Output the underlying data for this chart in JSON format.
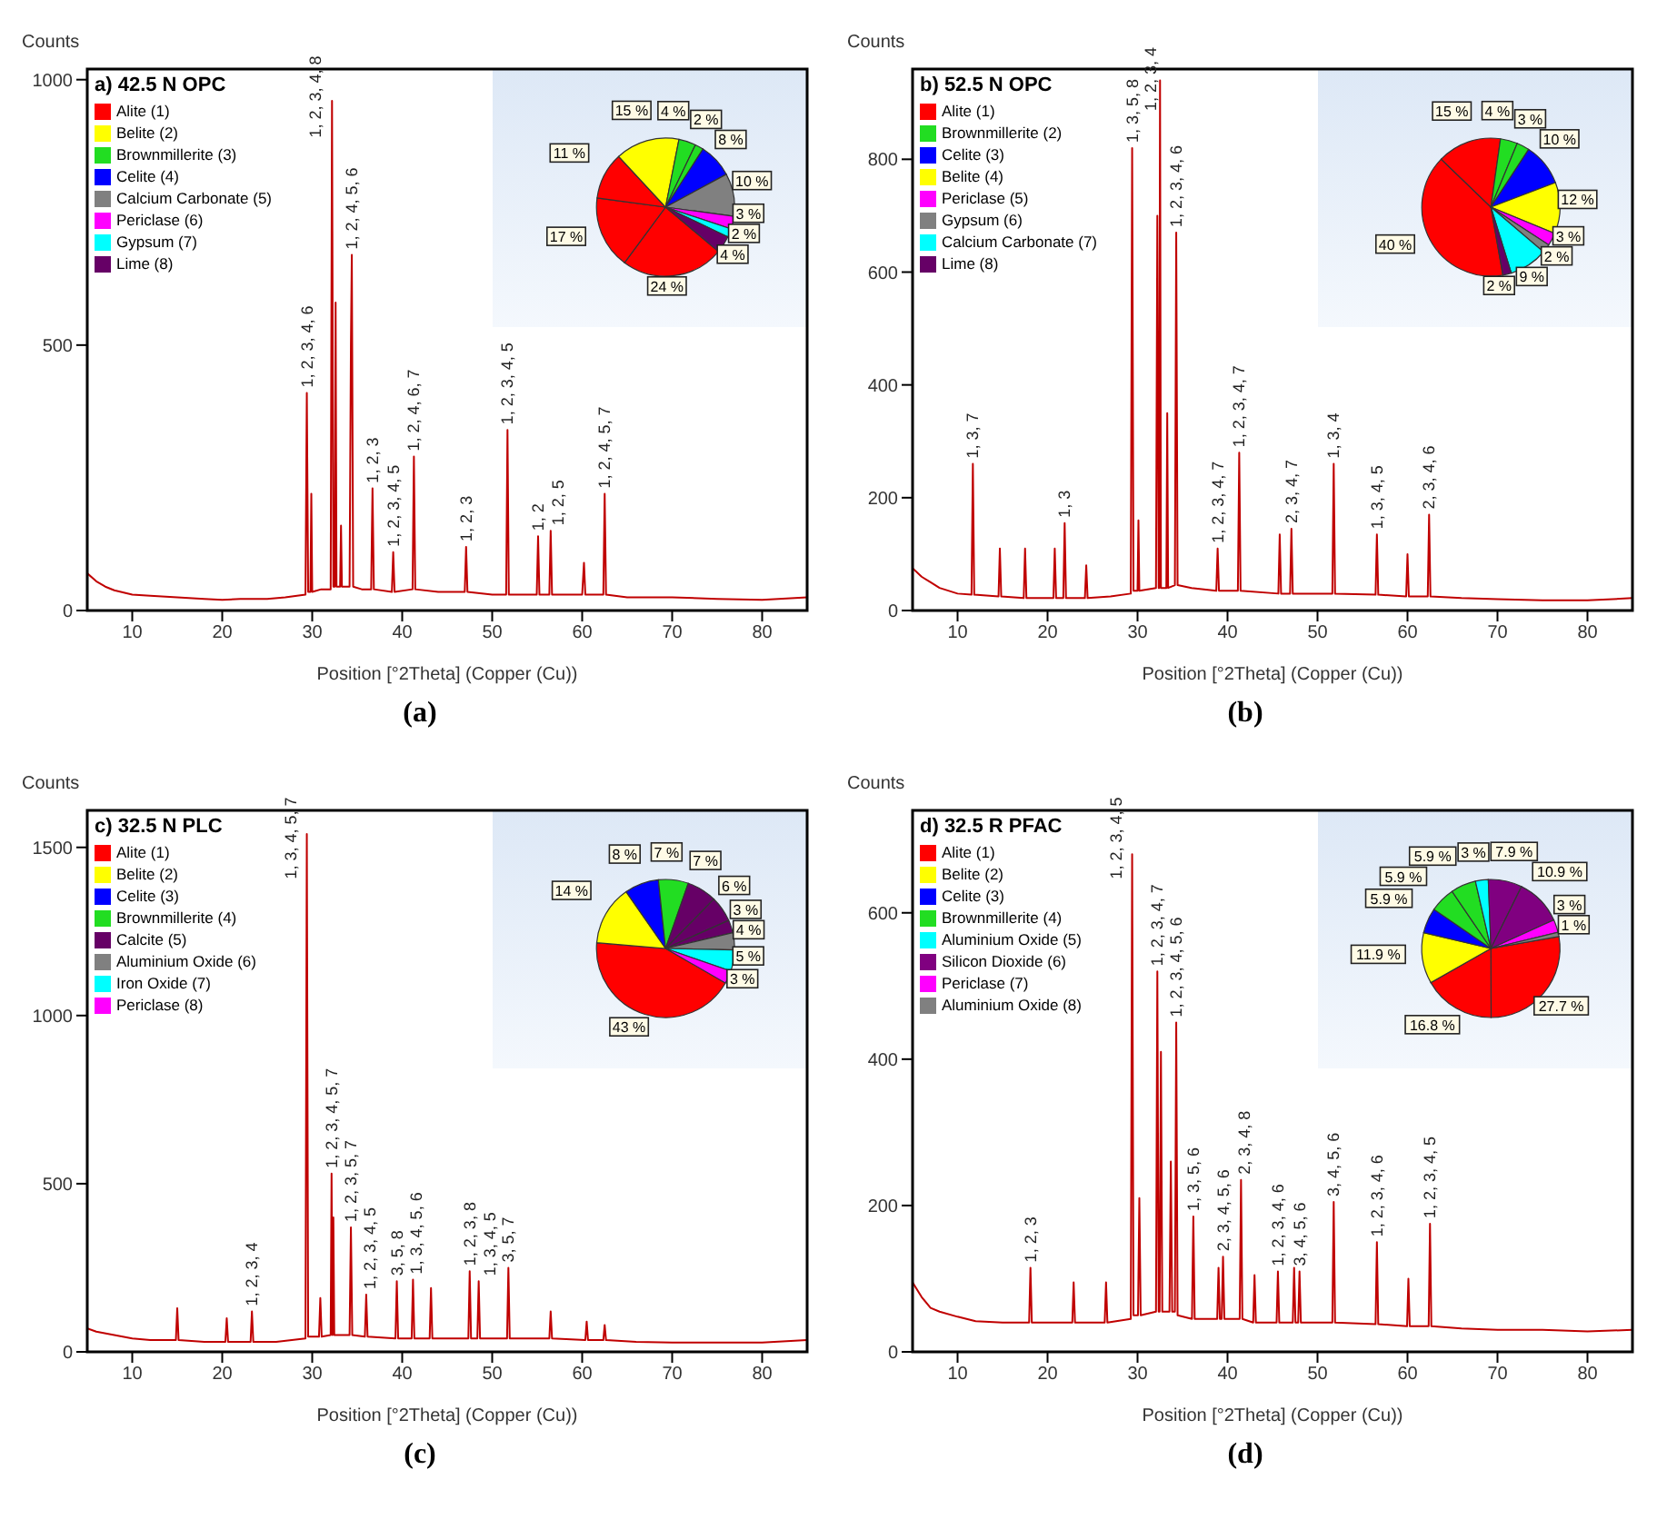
{
  "chart_data": [
    {
      "type": "line",
      "title": "a) 42.5 N OPC",
      "xlabel": "Position [°2Theta] (Copper (Cu))",
      "ylabel": "Counts",
      "color": "#c00000",
      "xlim": [
        5,
        85
      ],
      "ylim": [
        0,
        1020
      ],
      "xticks": [
        10,
        20,
        30,
        40,
        50,
        60,
        70,
        80
      ],
      "yticks": [
        0,
        500,
        1000
      ],
      "x": [
        5,
        6,
        7,
        8,
        10,
        12,
        15,
        18,
        20,
        22,
        25,
        27,
        29.25,
        29.4,
        29.55,
        29.8,
        29.9,
        30,
        31,
        32.05,
        32.2,
        32.35,
        32.5,
        32.6,
        32.7,
        33.1,
        33.2,
        33.3,
        34.15,
        34.3,
        34.4,
        34.55,
        35.5,
        36.55,
        36.7,
        36.85,
        38.85,
        39,
        39.15,
        41.15,
        41.3,
        41.45,
        44,
        46.95,
        47.1,
        47.25,
        50,
        51.55,
        51.7,
        51.85,
        54.95,
        55.1,
        55.25,
        56.35,
        56.5,
        56.65,
        60,
        60.2,
        60.35,
        62.35,
        62.5,
        62.65,
        65,
        70,
        75,
        80,
        85
      ],
      "values": [
        70,
        55,
        45,
        38,
        30,
        28,
        25,
        22,
        20,
        22,
        22,
        25,
        30,
        410,
        35,
        35,
        220,
        35,
        40,
        40,
        960,
        45,
        45,
        580,
        45,
        45,
        160,
        45,
        45,
        500,
        670,
        45,
        40,
        40,
        230,
        40,
        35,
        110,
        35,
        40,
        290,
        40,
        35,
        35,
        120,
        35,
        30,
        30,
        340,
        30,
        30,
        140,
        30,
        30,
        150,
        30,
        30,
        90,
        30,
        30,
        220,
        30,
        25,
        25,
        22,
        20,
        25
      ],
      "annotations": [
        {
          "text": "1, 2, 3, 4, 6",
          "x": 29.4,
          "y": 410
        },
        {
          "text": "1, 2, 3, 4, 8",
          "x": 32.2,
          "y": 960
        },
        {
          "text": "1, 2, 4, 5, 6",
          "x": 34.4,
          "y": 670
        },
        {
          "text": "1, 2, 3",
          "x": 36.7,
          "y": 230
        },
        {
          "text": "1, 2, 3, 4, 5",
          "x": 39,
          "y": 110
        },
        {
          "text": "1, 2, 4, 6, 7",
          "x": 41.3,
          "y": 290
        },
        {
          "text": "1, 2, 3",
          "x": 47.1,
          "y": 120
        },
        {
          "text": "1, 2, 3, 4, 5",
          "x": 51.7,
          "y": 340
        },
        {
          "text": "1, 2",
          "x": 55.1,
          "y": 140
        },
        {
          "text": "1, 2, 5",
          "x": 56.5,
          "y": 150
        },
        {
          "text": "1, 2, 4, 5, 7",
          "x": 62.5,
          "y": 220
        },
        "(a)"
      ]
    },
    {
      "type": "pie",
      "legend": "left",
      "categories": [
        "Alite (1)",
        null,
        null,
        "Belite (2)",
        "Brownmillerite (3)",
        null,
        "Celite (4)",
        "Calcium Carbonate (5)",
        "Periclase (6)",
        "Gypsum (7)",
        "Lime (8)"
      ],
      "values": [
        24,
        17,
        11,
        15,
        4,
        2,
        8,
        10,
        3,
        2,
        4
      ],
      "colors": [
        "#ff0000",
        "#ff0000",
        "#ff0000",
        "#ffff00",
        "#22dd22",
        "#22dd22",
        "#0000ff",
        "#808080",
        "#ff00ff",
        "#00ffff",
        "#660066"
      ],
      "value_labels": [
        "24 %",
        "17 %",
        "11 %",
        "15 %",
        "4 %",
        "2 %",
        "8 %",
        "10 %",
        "3 %",
        "2 %",
        "4 %"
      ]
    },
    {
      "type": "line",
      "title": "b) 52.5 N OPC",
      "xlabel": "Position [°2Theta] (Copper (Cu))",
      "ylabel": "Counts",
      "color": "#c00000",
      "xlim": [
        5,
        85
      ],
      "ylim": [
        0,
        960
      ],
      "xticks": [
        10,
        20,
        30,
        40,
        50,
        60,
        70,
        80
      ],
      "yticks": [
        0,
        200,
        400,
        600,
        800
      ],
      "x": [
        5,
        6,
        7,
        8,
        10,
        11.55,
        11.7,
        11.85,
        14.55,
        14.7,
        14.85,
        17.35,
        17.5,
        17.65,
        20.65,
        20.8,
        20.95,
        21.75,
        21.9,
        22.05,
        24.15,
        24.3,
        24.45,
        27,
        29.25,
        29.4,
        29.55,
        30,
        30.1,
        30.2,
        32.05,
        32.2,
        32.35,
        32.4,
        32.5,
        32.6,
        33.2,
        33.3,
        33.4,
        34.15,
        34.3,
        34.45,
        36,
        38.75,
        38.9,
        39.05,
        41.15,
        41.3,
        41.45,
        45.65,
        45.8,
        45.95,
        46.95,
        47.1,
        47.25,
        51.65,
        51.8,
        51.95,
        56.45,
        56.6,
        56.75,
        59.85,
        60,
        60.15,
        62.25,
        62.4,
        62.55,
        66,
        70,
        75,
        80,
        85
      ],
      "values": [
        75,
        60,
        50,
        40,
        30,
        28,
        260,
        28,
        25,
        110,
        25,
        22,
        110,
        22,
        22,
        110,
        22,
        22,
        155,
        22,
        22,
        80,
        22,
        25,
        30,
        820,
        35,
        35,
        160,
        35,
        40,
        700,
        40,
        40,
        940,
        40,
        40,
        350,
        40,
        45,
        670,
        45,
        40,
        35,
        110,
        35,
        35,
        280,
        35,
        30,
        135,
        30,
        30,
        145,
        30,
        30,
        260,
        30,
        28,
        135,
        28,
        25,
        100,
        25,
        25,
        170,
        25,
        22,
        20,
        18,
        18,
        22
      ],
      "annotations": [
        {
          "text": "1, 3, 7",
          "x": 11.7,
          "y": 260
        },
        {
          "text": "1, 3",
          "x": 21.9,
          "y": 155
        },
        {
          "text": "1, 3, 5, 8",
          "x": 29.4,
          "y": 820
        },
        {
          "text": "1, 2, 3, 4",
          "x": 32.5,
          "y": 940
        },
        {
          "text": "1, 2, 3, 4, 6",
          "x": 34.3,
          "y": 670
        },
        {
          "text": "1, 2, 3, 4, 7",
          "x": 38.9,
          "y": 110
        },
        {
          "text": "1, 2, 3, 4, 7",
          "x": 41.3,
          "y": 280
        },
        {
          "text": "2, 3, 4, 7",
          "x": 47.1,
          "y": 145
        },
        {
          "text": "1, 3, 4",
          "x": 51.8,
          "y": 260
        },
        {
          "text": "1, 3, 4, 5",
          "x": 56.6,
          "y": 135
        },
        {
          "text": "2, 3, 4, 6",
          "x": 62.4,
          "y": 170
        },
        "(b)"
      ]
    },
    {
      "type": "pie",
      "legend": "left",
      "categories": [
        "Alite (1)",
        null,
        "Brownmillerite (2)",
        null,
        "Celite (3)",
        "Belite (4)",
        "Periclase (5)",
        "Gypsum (6)",
        "Calcium Carbonate (7)",
        "Lime (8)"
      ],
      "values": [
        40,
        15,
        4,
        3,
        10,
        12,
        3,
        2,
        9,
        2
      ],
      "colors": [
        "#ff0000",
        "#ff0000",
        "#22dd22",
        "#22dd22",
        "#0000ff",
        "#ffff00",
        "#ff00ff",
        "#808080",
        "#00ffff",
        "#660066"
      ],
      "value_labels": [
        "40 %",
        "15 %",
        "4 %",
        "3 %",
        "10 %",
        "12 %",
        "3 %",
        "2 %",
        "9 %",
        "2 %"
      ]
    },
    {
      "type": "line",
      "title": "c) 32.5 N PLC",
      "xlabel": "Position [°2Theta] (Copper (Cu))",
      "ylabel": "Counts",
      "color": "#c00000",
      "xlim": [
        5,
        85
      ],
      "ylim": [
        0,
        1610
      ],
      "xticks": [
        10,
        20,
        30,
        40,
        50,
        60,
        70,
        80
      ],
      "yticks": [
        0,
        500,
        1000,
        1500
      ],
      "x": [
        5,
        6,
        8,
        10,
        12,
        14.85,
        15,
        15.15,
        18,
        20.35,
        20.5,
        20.65,
        23.15,
        23.3,
        23.45,
        26,
        29.25,
        29.4,
        29.55,
        30.75,
        30.9,
        31.05,
        32.05,
        32.15,
        32.25,
        32.35,
        32.45,
        34.15,
        34.3,
        34.45,
        35.85,
        36,
        36.15,
        39.25,
        39.4,
        39.55,
        41.05,
        41.2,
        41.35,
        43.05,
        43.2,
        43.35,
        47.35,
        47.5,
        47.65,
        48.35,
        48.5,
        48.65,
        51.65,
        51.8,
        51.95,
        56.35,
        56.5,
        56.65,
        60.35,
        60.5,
        60.65,
        62.35,
        62.5,
        62.65,
        66,
        70,
        75,
        80,
        85
      ],
      "values": [
        70,
        60,
        50,
        40,
        35,
        35,
        130,
        35,
        30,
        30,
        100,
        30,
        30,
        120,
        30,
        30,
        40,
        1540,
        45,
        45,
        160,
        45,
        50,
        530,
        50,
        400,
        50,
        50,
        370,
        50,
        45,
        170,
        45,
        40,
        210,
        40,
        40,
        215,
        40,
        40,
        190,
        40,
        40,
        240,
        40,
        40,
        210,
        40,
        40,
        250,
        40,
        40,
        120,
        40,
        35,
        90,
        35,
        35,
        80,
        35,
        30,
        28,
        28,
        28,
        35
      ],
      "annotations": [
        {
          "text": "1, 2, 3, 4",
          "x": 23.3,
          "y": 120
        },
        {
          "text": "1, 3, 4, 5, 7",
          "x": 29.4,
          "y": 1540
        },
        {
          "text": "1, 2, 3, 4, 5, 7",
          "x": 32.15,
          "y": 530
        },
        {
          "text": "1, 2, 3, 5, 7",
          "x": 34.3,
          "y": 370
        },
        {
          "text": "1, 2, 3, 4, 5",
          "x": 36,
          "y": 170
        },
        {
          "text": "3, 5, 8",
          "x": 39.4,
          "y": 210
        },
        {
          "text": "1, 3, 4, 5, 6",
          "x": 41.2,
          "y": 215
        },
        {
          "text": "1, 2, 3, 8",
          "x": 47.5,
          "y": 240
        },
        {
          "text": "1, 3, 4, 5",
          "x": 48.5,
          "y": 210
        },
        {
          "text": "3, 5, 7",
          "x": 51.8,
          "y": 250
        },
        "(c)"
      ]
    },
    {
      "type": "pie",
      "legend": "left",
      "categories": [
        "Alite (1)",
        "Belite (2)",
        "Celite (3)",
        "Brownmillerite (4)",
        "Calcite (5)",
        null,
        null,
        "Aluminium Oxide (6)",
        "Iron Oxide (7)",
        "Periclase (8)"
      ],
      "values": [
        43,
        14,
        8,
        7,
        7,
        6,
        3,
        4,
        5,
        3
      ],
      "colors": [
        "#ff0000",
        "#ffff00",
        "#0000ff",
        "#22dd22",
        "#660066",
        "#660066",
        "#660066",
        "#808080",
        "#00ffff",
        "#ff00ff"
      ],
      "value_labels": [
        "43 %",
        "14 %",
        "8 %",
        "7 %",
        "7 %",
        "6 %",
        "3 %",
        "4 %",
        "5 %",
        "3 %"
      ]
    },
    {
      "type": "line",
      "title": "d) 32.5 R PFAC",
      "xlabel": "Position [°2Theta] (Copper (Cu))",
      "ylabel": "Counts",
      "color": "#c00000",
      "xlim": [
        5,
        85
      ],
      "ylim": [
        0,
        740
      ],
      "xticks": [
        10,
        20,
        30,
        40,
        50,
        60,
        70,
        80
      ],
      "yticks": [
        0,
        200,
        400,
        600
      ],
      "x": [
        5,
        6,
        7,
        8,
        10,
        12,
        15,
        17.95,
        18.1,
        18.25,
        22.75,
        22.9,
        23.05,
        26.35,
        26.5,
        26.65,
        29.25,
        29.4,
        29.55,
        30.05,
        30.2,
        30.35,
        32.05,
        32.2,
        32.35,
        32.45,
        32.6,
        32.75,
        33.55,
        33.7,
        33.85,
        34.15,
        34.3,
        34.45,
        36.05,
        36.2,
        36.35,
        38.85,
        39,
        39.15,
        39.35,
        39.5,
        39.65,
        41.35,
        41.5,
        41.65,
        42.85,
        43,
        43.15,
        45.45,
        45.6,
        45.75,
        47.25,
        47.4,
        47.55,
        47.85,
        48,
        48.15,
        51.65,
        51.8,
        51.95,
        56.45,
        56.6,
        56.75,
        59.95,
        60.1,
        60.25,
        62.35,
        62.5,
        62.65,
        66,
        70,
        75,
        80,
        85
      ],
      "values": [
        95,
        75,
        60,
        55,
        48,
        42,
        40,
        40,
        115,
        40,
        40,
        95,
        40,
        40,
        95,
        40,
        45,
        680,
        50,
        50,
        210,
        50,
        55,
        520,
        55,
        55,
        410,
        55,
        55,
        260,
        55,
        55,
        450,
        50,
        45,
        185,
        45,
        45,
        115,
        45,
        45,
        130,
        45,
        45,
        235,
        45,
        40,
        105,
        40,
        40,
        110,
        40,
        40,
        115,
        40,
        40,
        110,
        40,
        40,
        205,
        40,
        38,
        150,
        38,
        35,
        100,
        35,
        35,
        175,
        35,
        32,
        30,
        30,
        28,
        30
      ],
      "annotations": [
        {
          "text": "1, 2, 3",
          "x": 18.1,
          "y": 115
        },
        {
          "text": "1, 2, 3, 4, 5",
          "x": 29.4,
          "y": 680
        },
        {
          "text": "1, 2, 3, 4, 7",
          "x": 32.2,
          "y": 520
        },
        {
          "text": "1, 2, 3, 4, 5, 6",
          "x": 34.3,
          "y": 450
        },
        {
          "text": "1, 3, 5, 6",
          "x": 36.2,
          "y": 185
        },
        {
          "text": "2, 3, 4, 5, 6",
          "x": 39.5,
          "y": 130
        },
        {
          "text": "2, 3, 4, 8",
          "x": 41.5,
          "y": 235
        },
        {
          "text": "1, 2, 3, 4, 6",
          "x": 45.6,
          "y": 110
        },
        {
          "text": "3, 4, 5, 6",
          "x": 48,
          "y": 110
        },
        {
          "text": "3, 4, 5, 6",
          "x": 51.8,
          "y": 205
        },
        {
          "text": "1, 2, 3, 4, 6",
          "x": 56.6,
          "y": 150
        },
        {
          "text": "1, 2, 3, 4, 5",
          "x": 62.5,
          "y": 175
        },
        "(d)"
      ]
    },
    {
      "type": "pie",
      "legend": "left",
      "categories": [
        "Alite (1)",
        null,
        "Belite (2)",
        "Celite (3)",
        "Brownmillerite (4)",
        null,
        "Aluminium Oxide (5)",
        "Silicon Dioxide (6)",
        null,
        "Periclase (7)",
        "Aluminium Oxide (8)"
      ],
      "values": [
        27.7,
        16.8,
        11.9,
        5.9,
        5.9,
        5.9,
        3,
        7.9,
        10.9,
        3,
        1
      ],
      "colors": [
        "#ff0000",
        "#ff0000",
        "#ffff00",
        "#0000ff",
        "#22dd22",
        "#22dd22",
        "#00ffff",
        "#800080",
        "#800080",
        "#ff00ff",
        "#808080"
      ],
      "value_labels": [
        "27.7 %",
        "16.8 %",
        "11.9 %",
        "5.9 %",
        "5.9 %",
        "5.9 %",
        "3 %",
        "7.9 %",
        "10.9 %",
        "3 %",
        "1 %"
      ]
    }
  ]
}
